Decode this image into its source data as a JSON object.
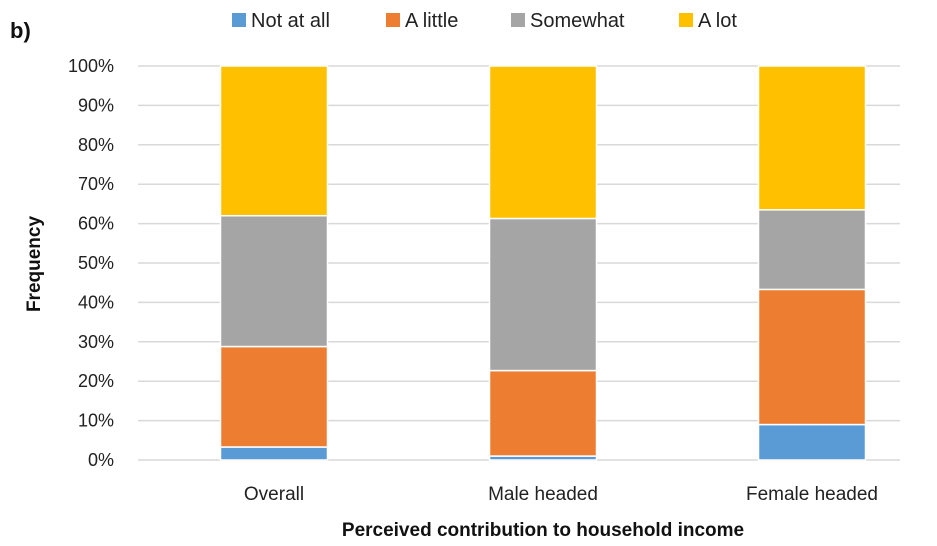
{
  "panel_label": "b)",
  "chart_data": {
    "type": "bar",
    "stacked": true,
    "percent": true,
    "categories": [
      "Overall",
      "Male headed",
      "Female headed"
    ],
    "series": [
      {
        "name": "Not at all",
        "color": "#5b9bd5",
        "values": [
          3.3,
          1.0,
          9.0
        ]
      },
      {
        "name": "A little",
        "color": "#ed7d31",
        "values": [
          25.5,
          21.7,
          34.3
        ]
      },
      {
        "name": "Somewhat",
        "color": "#a5a5a5",
        "values": [
          33.2,
          38.6,
          20.2
        ]
      },
      {
        "name": "A lot",
        "color": "#ffc000",
        "values": [
          38.0,
          38.7,
          36.5
        ]
      }
    ],
    "yticks": [
      "0%",
      "10%",
      "20%",
      "30%",
      "40%",
      "50%",
      "60%",
      "70%",
      "80%",
      "90%",
      "100%"
    ],
    "ylim": [
      0,
      100
    ],
    "xlabel": "Perceived contribution to household income",
    "ylabel": "Frequency",
    "legend_position": "top",
    "grid": true
  }
}
